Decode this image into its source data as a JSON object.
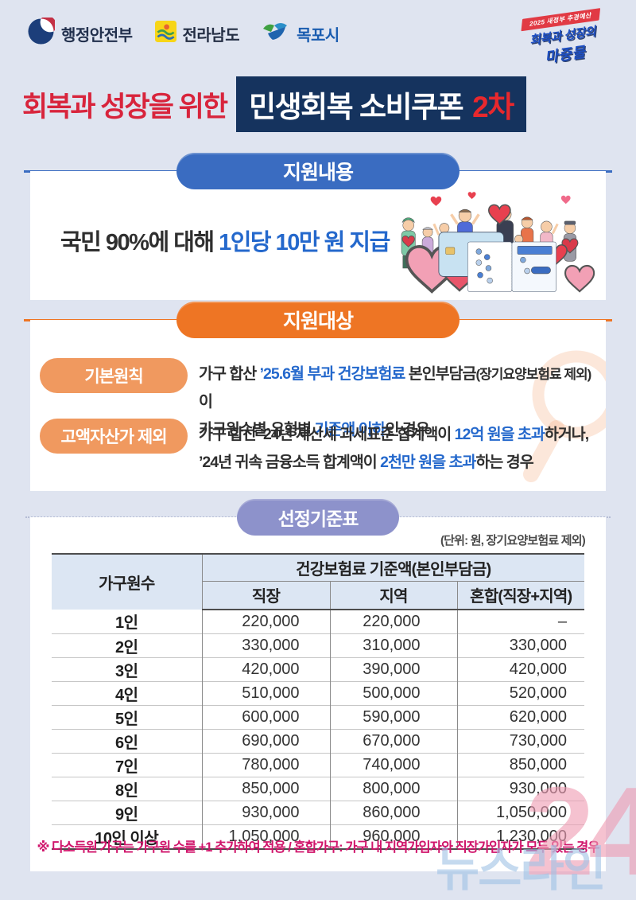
{
  "header": {
    "logos": [
      {
        "name": "mois",
        "label": "행정안전부"
      },
      {
        "name": "jeonnam",
        "label": "전라남도"
      },
      {
        "name": "mokpo",
        "label": "목포시"
      }
    ],
    "badge": {
      "ribbon": "2025 새정부 추경예산",
      "line1": "회복과 성장의",
      "line2": "마중물"
    }
  },
  "title": {
    "prefix": "회복과 성장을 위한",
    "box_main": "민생회복 소비쿠폰",
    "box_suffix": "2차"
  },
  "section_support": {
    "header": "지원내용",
    "line": [
      [
        {
          "text": "국민 90%에 대해 ",
          "style": "dark"
        },
        {
          "text": "1인당 10만 원 지급",
          "style": "blue"
        }
      ]
    ]
  },
  "section_target": {
    "header": "지원대상",
    "items": [
      {
        "label": "기본원칙",
        "lines": [
          [
            {
              "text": "가구 합산 ",
              "style": "dark"
            },
            {
              "text": "’25.6월 부과 건강보험료",
              "style": "blue"
            },
            {
              "text": " 본인부담금",
              "style": "dark"
            },
            {
              "text": "(장기요양보험료 제외)",
              "style": "dark-small"
            },
            {
              "text": "이",
              "style": "dark"
            }
          ],
          [
            {
              "text": "가구원수별·유형별 ",
              "style": "dark"
            },
            {
              "text": "기준액 이하",
              "style": "blue"
            },
            {
              "text": "인 경우",
              "style": "dark"
            }
          ]
        ]
      },
      {
        "label": "고액자산가 제외",
        "lines": [
          [
            {
              "text": "가구 합산 ’24년 재산세 과세표준 합계액이 ",
              "style": "dark"
            },
            {
              "text": "12억 원을 초과",
              "style": "blue"
            },
            {
              "text": "하거나,",
              "style": "dark"
            }
          ],
          [
            {
              "text": "’24년 귀속 금융소득 합계액이 ",
              "style": "dark"
            },
            {
              "text": "2천만 원을 초과",
              "style": "blue"
            },
            {
              "text": "하는 경우",
              "style": "dark"
            }
          ]
        ]
      }
    ]
  },
  "section_table": {
    "header": "선정기준표",
    "unit_note": "(단위: 원, 장기요양보험료 제외)",
    "table": {
      "col1_header": "가구원수",
      "group_header": "건강보험료 기준액(본인부담금)",
      "sub_headers": [
        "직장",
        "지역",
        "혼합(직장+지역)"
      ],
      "rows": [
        {
          "label": "1인",
          "values": [
            "220,000",
            "220,000",
            "–"
          ]
        },
        {
          "label": "2인",
          "values": [
            "330,000",
            "310,000",
            "330,000"
          ]
        },
        {
          "label": "3인",
          "values": [
            "420,000",
            "390,000",
            "420,000"
          ]
        },
        {
          "label": "4인",
          "values": [
            "510,000",
            "500,000",
            "520,000"
          ]
        },
        {
          "label": "5인",
          "values": [
            "600,000",
            "590,000",
            "620,000"
          ]
        },
        {
          "label": "6인",
          "values": [
            "690,000",
            "670,000",
            "730,000"
          ]
        },
        {
          "label": "7인",
          "values": [
            "780,000",
            "740,000",
            "850,000"
          ]
        },
        {
          "label": "8인",
          "values": [
            "850,000",
            "800,000",
            "930,000"
          ]
        },
        {
          "label": "9인",
          "values": [
            "930,000",
            "860,000",
            "1,050,000"
          ]
        },
        {
          "label": "10인 이상",
          "values": [
            "1,050,000",
            "960,000",
            "1,230,000"
          ]
        }
      ]
    },
    "footnote": "※ 다소득원 가구는 가구원 수를 +1 추가하여 적용 / 혼합가구: 가구 내 지역가입자와 직장가입자가 모두 있는 경우"
  },
  "watermark": {
    "text": "뉴스라인",
    "number": "24"
  },
  "colors": {
    "page_bg": "#dfe4f0",
    "title_red": "#d8243c",
    "title_navy": "#15335e",
    "accent_red": "#e8282d",
    "section_blue": "#3a6cc1",
    "section_orange": "#ee7524",
    "label_orange": "#f0995f",
    "section_purple": "#8d92cb",
    "text_blue": "#2468cc",
    "table_header_bg": "#dce6f3",
    "footnote_pink": "#d0156b"
  }
}
